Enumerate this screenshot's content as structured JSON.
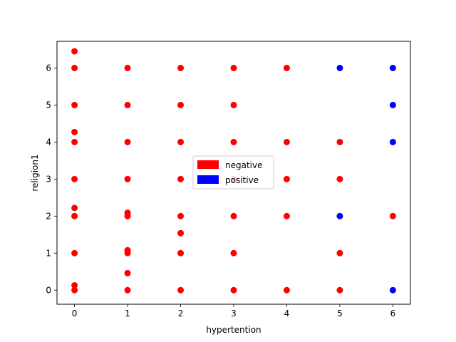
{
  "chart_data": {
    "type": "scatter",
    "title": "",
    "xlabel": "hypertention",
    "ylabel": "religion1",
    "xlim": [
      -0.33,
      6.33
    ],
    "ylim": [
      -0.38,
      6.72
    ],
    "x_ticks": [
      0,
      1,
      2,
      3,
      4,
      5,
      6
    ],
    "y_ticks": [
      0,
      1,
      2,
      3,
      4,
      5,
      6
    ],
    "grid": false,
    "legend_position": "center",
    "series": [
      {
        "name": "negative",
        "color": "#ff0000",
        "points": [
          [
            0,
            0.0
          ],
          [
            0,
            0.13
          ],
          [
            0,
            1.0
          ],
          [
            0,
            2.0
          ],
          [
            0,
            2.22
          ],
          [
            0,
            3.0
          ],
          [
            0,
            4.0
          ],
          [
            0,
            4.27
          ],
          [
            0,
            5.0
          ],
          [
            0,
            6.0
          ],
          [
            0,
            6.45
          ],
          [
            1,
            0.0
          ],
          [
            1,
            0.46
          ],
          [
            1,
            1.0
          ],
          [
            1,
            1.08
          ],
          [
            1,
            2.0
          ],
          [
            1,
            2.09
          ],
          [
            1,
            3.0
          ],
          [
            1,
            4.0
          ],
          [
            1,
            5.0
          ],
          [
            1,
            6.0
          ],
          [
            2,
            0.0
          ],
          [
            2,
            1.0
          ],
          [
            2,
            1.54
          ],
          [
            2,
            2.0
          ],
          [
            2,
            3.0
          ],
          [
            2,
            4.0
          ],
          [
            2,
            5.0
          ],
          [
            2,
            6.0
          ],
          [
            3,
            0.0
          ],
          [
            3,
            1.0
          ],
          [
            3,
            2.0
          ],
          [
            3,
            3.0
          ],
          [
            3,
            4.0
          ],
          [
            3,
            5.0
          ],
          [
            3,
            6.0
          ],
          [
            4,
            0.0
          ],
          [
            4,
            2.0
          ],
          [
            4,
            3.0
          ],
          [
            4,
            4.0
          ],
          [
            4,
            6.0
          ],
          [
            5,
            0.0
          ],
          [
            5,
            1.0
          ],
          [
            5,
            3.0
          ],
          [
            5,
            4.0
          ],
          [
            6,
            2.0
          ]
        ]
      },
      {
        "name": "positive",
        "color": "#0000ff",
        "points": [
          [
            5,
            2.0
          ],
          [
            5,
            6.0
          ],
          [
            6,
            0.0
          ],
          [
            6,
            4.0
          ],
          [
            6,
            5.0
          ],
          [
            6,
            6.0
          ]
        ]
      }
    ]
  }
}
